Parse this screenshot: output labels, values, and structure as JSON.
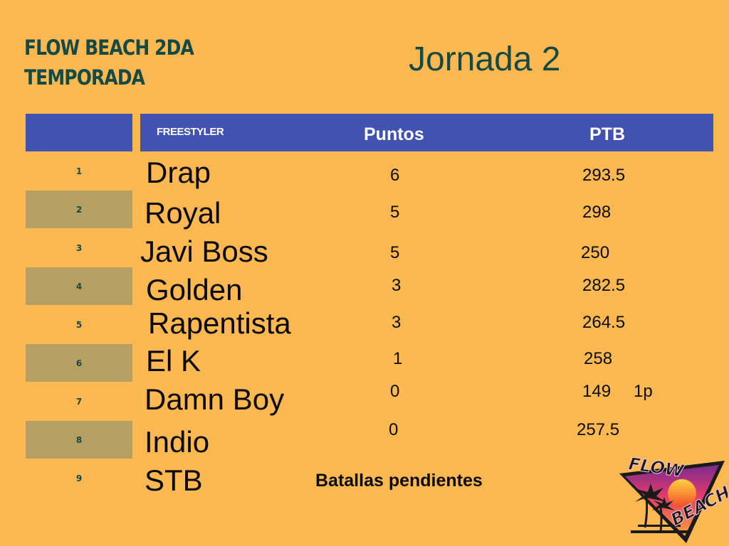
{
  "header": {
    "league_title_line1": "FLOW BEACH 2DA",
    "league_title_line2": "TEMPORADA",
    "round_title": "Jornada 2"
  },
  "table": {
    "columns": {
      "freestyler": "FREESTYLER",
      "points": "Puntos",
      "ptb": "PTB"
    },
    "rows": [
      {
        "rank": "1",
        "name": "Drap",
        "points": "6",
        "ptb": "293.5",
        "note": ""
      },
      {
        "rank": "2",
        "name": "Royal",
        "points": "5",
        "ptb": "298",
        "note": ""
      },
      {
        "rank": "3",
        "name": "Javi Boss",
        "points": "5",
        "ptb": "250",
        "note": ""
      },
      {
        "rank": "4",
        "name": "Golden",
        "points": "3",
        "ptb": "282.5",
        "note": ""
      },
      {
        "rank": "5",
        "name": "Rapentista",
        "points": "3",
        "ptb": "264.5",
        "note": ""
      },
      {
        "rank": "6",
        "name": "El K",
        "points": "1",
        "ptb": "258",
        "note": ""
      },
      {
        "rank": "7",
        "name": "Damn Boy",
        "points": "0",
        "ptb": "149",
        "note": "1p"
      },
      {
        "rank": "8",
        "name": "Indio",
        "points": "0",
        "ptb": "257.5",
        "note": ""
      },
      {
        "rank": "9",
        "name": "STB",
        "points": "",
        "ptb": "",
        "note": ""
      }
    ],
    "pending_label": "Batallas pendientes"
  },
  "logo": {
    "line1": "FLOW",
    "line2": "BEACH"
  },
  "colors": {
    "background": "#FDB852",
    "header_blue": "#4152B0",
    "shaded_cell": "#B69F62",
    "title_green": "#154A44"
  }
}
